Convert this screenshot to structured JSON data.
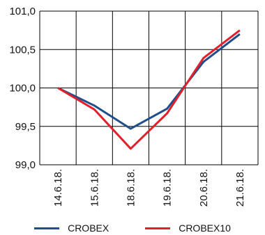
{
  "chart_data": {
    "type": "line",
    "categories": [
      "14.6.18.",
      "15.6.18.",
      "18.6.18.",
      "19.6.18.",
      "20.6.18.",
      "21.6.18."
    ],
    "series": [
      {
        "name": "CROBEX",
        "values": [
          100.0,
          99.77,
          99.47,
          99.73,
          100.34,
          100.7
        ],
        "color": "#1f4e8c"
      },
      {
        "name": "CROBEX10",
        "values": [
          100.0,
          99.72,
          99.21,
          99.67,
          100.39,
          100.75
        ],
        "color": "#e0202a"
      }
    ],
    "yticks": [
      "99,0",
      "99,5",
      "100,0",
      "100,5",
      "101,0"
    ],
    "ylim": [
      99.0,
      101.0
    ],
    "grid": true,
    "legend": "bottom",
    "title": "",
    "xlabel": "",
    "ylabel": ""
  }
}
